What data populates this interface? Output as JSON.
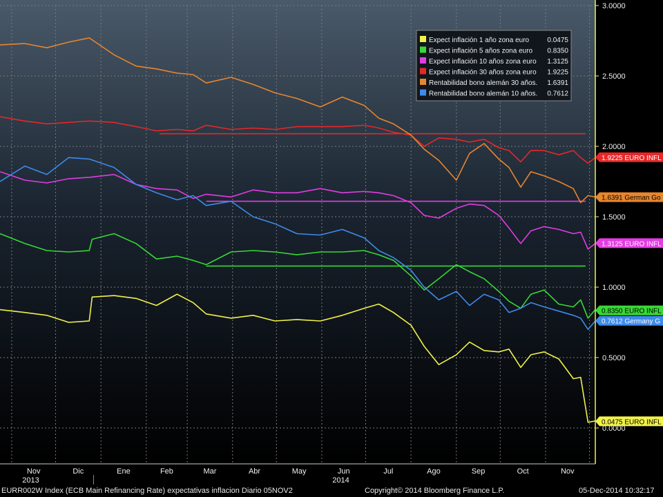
{
  "chart_data": {
    "type": "line",
    "title": "",
    "xlabel": "",
    "ylabel": "",
    "ylim": [
      -0.13,
      3.0
    ],
    "yticks": [
      "3.0000",
      "2.5000",
      "2.0000",
      "1.5000",
      "1.0000",
      "0.5000",
      "0.0000"
    ],
    "ytick_values": [
      3.0,
      2.5,
      2.0,
      1.5,
      1.0,
      0.5,
      0.0
    ],
    "month_ticks": [
      "Nov",
      "Dic",
      "Ene",
      "Feb",
      "Mar",
      "Abr",
      "May",
      "Jun",
      "Jul",
      "Ago",
      "Sep",
      "Oct",
      "Nov"
    ],
    "year_labels": [
      "2013",
      "2014"
    ],
    "x_start": "2013-10-24",
    "x_end": "2014-12-05",
    "grid": true,
    "legend_position": "top-right",
    "series": [
      {
        "name": "Expect inflación 1 año zona euro",
        "last": "0.0475",
        "tag": "0.0475 EURO INFL",
        "color": "#f2f24a",
        "x": [
          "2013-10-24",
          "2013-11-10",
          "2013-11-25",
          "2013-12-10",
          "2013-12-24",
          "2013-12-26",
          "2014-01-10",
          "2014-01-25",
          "2014-02-08",
          "2014-02-22",
          "2014-03-05",
          "2014-03-14",
          "2014-03-31",
          "2014-04-15",
          "2014-04-30",
          "2014-05-15",
          "2014-05-31",
          "2014-06-15",
          "2014-06-30",
          "2014-07-10",
          "2014-07-20",
          "2014-08-01",
          "2014-08-10",
          "2014-08-20",
          "2014-09-01",
          "2014-09-10",
          "2014-09-20",
          "2014-09-30",
          "2014-10-07",
          "2014-10-15",
          "2014-10-22",
          "2014-10-31",
          "2014-11-10",
          "2014-11-20",
          "2014-11-25",
          "2014-11-30",
          "2014-12-05"
        ],
        "y": [
          0.84,
          0.82,
          0.8,
          0.75,
          0.76,
          0.93,
          0.94,
          0.92,
          0.87,
          0.95,
          0.89,
          0.81,
          0.78,
          0.8,
          0.76,
          0.77,
          0.76,
          0.8,
          0.85,
          0.88,
          0.82,
          0.73,
          0.58,
          0.45,
          0.52,
          0.61,
          0.55,
          0.54,
          0.56,
          0.43,
          0.52,
          0.54,
          0.49,
          0.35,
          0.36,
          0.04,
          0.05
        ]
      },
      {
        "name": "Expect inflación 5 años zona euro",
        "last": "0.8350",
        "tag": "0.8350 EURO INFL",
        "color": "#37d935",
        "x": [
          "2013-10-24",
          "2013-11-10",
          "2013-11-25",
          "2013-12-10",
          "2013-12-24",
          "2013-12-26",
          "2014-01-10",
          "2014-01-25",
          "2014-02-08",
          "2014-02-22",
          "2014-03-05",
          "2014-03-14",
          "2014-03-31",
          "2014-04-15",
          "2014-04-30",
          "2014-05-15",
          "2014-05-31",
          "2014-06-15",
          "2014-06-30",
          "2014-07-10",
          "2014-07-20",
          "2014-08-01",
          "2014-08-10",
          "2014-08-20",
          "2014-09-01",
          "2014-09-10",
          "2014-09-20",
          "2014-09-30",
          "2014-10-07",
          "2014-10-15",
          "2014-10-22",
          "2014-10-31",
          "2014-11-10",
          "2014-11-20",
          "2014-11-25",
          "2014-11-30",
          "2014-12-05"
        ],
        "y": [
          1.38,
          1.31,
          1.26,
          1.25,
          1.26,
          1.34,
          1.38,
          1.31,
          1.2,
          1.22,
          1.19,
          1.16,
          1.25,
          1.26,
          1.25,
          1.23,
          1.25,
          1.25,
          1.26,
          1.23,
          1.19,
          1.08,
          0.98,
          1.06,
          1.16,
          1.11,
          1.06,
          0.97,
          0.9,
          0.85,
          0.95,
          0.98,
          0.88,
          0.86,
          0.91,
          0.78,
          0.84
        ]
      },
      {
        "name": "Expect inflación 10 años zona euro",
        "last": "1.3125",
        "tag": "1.3125 EURO INFL",
        "color": "#e33ce3",
        "x": [
          "2013-10-24",
          "2013-11-10",
          "2013-11-25",
          "2013-12-10",
          "2013-12-24",
          "2014-01-10",
          "2014-01-25",
          "2014-02-08",
          "2014-02-22",
          "2014-03-05",
          "2014-03-14",
          "2014-03-31",
          "2014-04-15",
          "2014-04-30",
          "2014-05-15",
          "2014-05-31",
          "2014-06-15",
          "2014-06-30",
          "2014-07-10",
          "2014-07-20",
          "2014-08-01",
          "2014-08-10",
          "2014-08-20",
          "2014-09-01",
          "2014-09-10",
          "2014-09-20",
          "2014-09-30",
          "2014-10-07",
          "2014-10-15",
          "2014-10-22",
          "2014-10-31",
          "2014-11-10",
          "2014-11-20",
          "2014-11-25",
          "2014-11-30",
          "2014-12-05"
        ],
        "y": [
          1.82,
          1.76,
          1.74,
          1.77,
          1.78,
          1.8,
          1.73,
          1.7,
          1.69,
          1.63,
          1.66,
          1.64,
          1.69,
          1.67,
          1.67,
          1.7,
          1.67,
          1.68,
          1.67,
          1.65,
          1.6,
          1.51,
          1.49,
          1.56,
          1.59,
          1.58,
          1.51,
          1.42,
          1.31,
          1.4,
          1.43,
          1.41,
          1.38,
          1.39,
          1.27,
          1.31
        ]
      },
      {
        "name": "Expect inflación 30 años zona euro",
        "last": "1.9225",
        "tag": "1.9225 EURO INFL",
        "color": "#e82727",
        "x": [
          "2013-10-24",
          "2013-11-10",
          "2013-11-25",
          "2013-12-10",
          "2013-12-24",
          "2014-01-10",
          "2014-01-25",
          "2014-02-08",
          "2014-02-22",
          "2014-03-05",
          "2014-03-14",
          "2014-03-31",
          "2014-04-15",
          "2014-04-30",
          "2014-05-15",
          "2014-05-31",
          "2014-06-15",
          "2014-06-30",
          "2014-07-10",
          "2014-07-20",
          "2014-08-01",
          "2014-08-10",
          "2014-08-20",
          "2014-09-01",
          "2014-09-10",
          "2014-09-20",
          "2014-09-30",
          "2014-10-07",
          "2014-10-15",
          "2014-10-22",
          "2014-10-31",
          "2014-11-10",
          "2014-11-20",
          "2014-11-25",
          "2014-11-30",
          "2014-12-05"
        ],
        "y": [
          2.21,
          2.18,
          2.16,
          2.17,
          2.18,
          2.17,
          2.14,
          2.11,
          2.12,
          2.11,
          2.15,
          2.12,
          2.13,
          2.12,
          2.14,
          2.14,
          2.14,
          2.15,
          2.13,
          2.1,
          2.08,
          2.0,
          2.06,
          2.05,
          2.03,
          2.05,
          1.99,
          1.97,
          1.89,
          1.97,
          1.97,
          1.94,
          1.97,
          1.92,
          1.88,
          1.92
        ]
      },
      {
        "name": "Rentabilidad bono alemán 30 años.",
        "last": "1.6391",
        "tag": "1.6391 German Go",
        "color": "#e8862e",
        "x": [
          "2013-10-24",
          "2013-11-10",
          "2013-11-25",
          "2013-12-10",
          "2013-12-24",
          "2014-01-10",
          "2014-01-25",
          "2014-02-08",
          "2014-02-22",
          "2014-03-05",
          "2014-03-14",
          "2014-03-31",
          "2014-04-15",
          "2014-04-30",
          "2014-05-15",
          "2014-05-31",
          "2014-06-15",
          "2014-06-30",
          "2014-07-10",
          "2014-07-20",
          "2014-08-01",
          "2014-08-10",
          "2014-08-20",
          "2014-09-01",
          "2014-09-10",
          "2014-09-20",
          "2014-09-30",
          "2014-10-07",
          "2014-10-15",
          "2014-10-22",
          "2014-10-31",
          "2014-11-10",
          "2014-11-20",
          "2014-11-25",
          "2014-11-30",
          "2014-12-05"
        ],
        "y": [
          2.72,
          2.73,
          2.7,
          2.74,
          2.77,
          2.65,
          2.57,
          2.55,
          2.52,
          2.51,
          2.45,
          2.49,
          2.44,
          2.38,
          2.34,
          2.28,
          2.35,
          2.29,
          2.2,
          2.16,
          2.08,
          1.98,
          1.9,
          1.76,
          1.95,
          2.02,
          1.91,
          1.85,
          1.71,
          1.82,
          1.79,
          1.75,
          1.7,
          1.6,
          1.65,
          1.64
        ]
      },
      {
        "name": "Rentabilidad bono alemán 10 años.",
        "last": "0.7612",
        "tag": "0.7612 Germany G",
        "color": "#3e8bea",
        "x": [
          "2013-10-24",
          "2013-11-10",
          "2013-11-25",
          "2013-12-10",
          "2013-12-24",
          "2014-01-10",
          "2014-01-25",
          "2014-02-08",
          "2014-02-22",
          "2014-03-05",
          "2014-03-14",
          "2014-03-31",
          "2014-04-15",
          "2014-04-30",
          "2014-05-15",
          "2014-05-31",
          "2014-06-15",
          "2014-06-30",
          "2014-07-10",
          "2014-07-20",
          "2014-08-01",
          "2014-08-10",
          "2014-08-20",
          "2014-09-01",
          "2014-09-10",
          "2014-09-20",
          "2014-09-30",
          "2014-10-07",
          "2014-10-15",
          "2014-10-22",
          "2014-10-31",
          "2014-11-10",
          "2014-11-20",
          "2014-11-25",
          "2014-11-30",
          "2014-12-05"
        ],
        "y": [
          1.75,
          1.86,
          1.8,
          1.92,
          1.91,
          1.85,
          1.73,
          1.67,
          1.62,
          1.65,
          1.58,
          1.61,
          1.5,
          1.45,
          1.38,
          1.37,
          1.41,
          1.35,
          1.26,
          1.21,
          1.12,
          1.0,
          0.91,
          0.97,
          0.87,
          0.95,
          0.91,
          0.82,
          0.85,
          0.89,
          0.86,
          0.83,
          0.8,
          0.78,
          0.7,
          0.76
        ]
      }
    ],
    "reference_lines": [
      {
        "color": "#e82727",
        "y": 2.09,
        "x_from": "2014-02-10",
        "x_to": "2014-12-05"
      },
      {
        "color": "#e33ce3",
        "y": 1.61,
        "x_from": "2014-03-14",
        "x_to": "2014-12-05"
      },
      {
        "color": "#37d935",
        "y": 1.15,
        "x_from": "2014-03-14",
        "x_to": "2014-12-05"
      }
    ]
  },
  "footer": {
    "left": "EURR002W Index (ECB Main Refinancing Rate) expectativas inflacion  Diario 05NOV2",
    "center": "Copyright© 2014 Bloomberg Finance L.P.",
    "right": "05-Dec-2014 10:32:17"
  },
  "colors": {
    "background": "#000000",
    "grid": "#7a7a7a",
    "axis": "#f2f24a",
    "text": "#f0f0f0"
  }
}
